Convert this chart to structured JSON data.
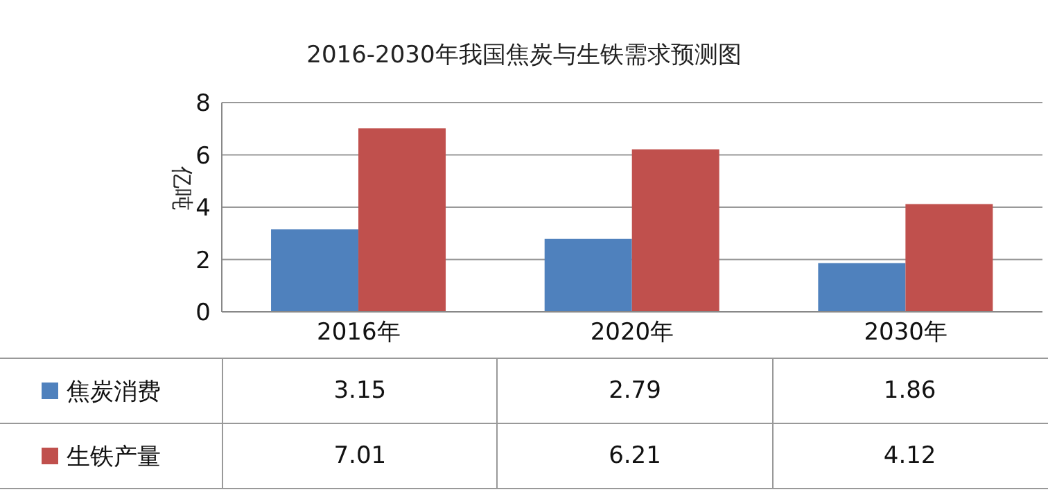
{
  "chart_data": {
    "type": "bar",
    "title": "2016-2030年我国焦炭与生铁需求预测图",
    "ylabel": "亿吨",
    "categories": [
      "2016年",
      "2020年",
      "2030年"
    ],
    "series": [
      {
        "name": "焦炭消费",
        "color": "#4f81bd",
        "values": [
          3.15,
          2.79,
          1.86
        ]
      },
      {
        "name": "生铁产量",
        "color": "#c0504d",
        "values": [
          7.01,
          6.21,
          4.12
        ]
      }
    ],
    "ylim": [
      0,
      8
    ],
    "yticks": [
      0,
      2,
      4,
      6,
      8
    ],
    "grid": "y",
    "legend": "bottom",
    "data_labels": true
  }
}
